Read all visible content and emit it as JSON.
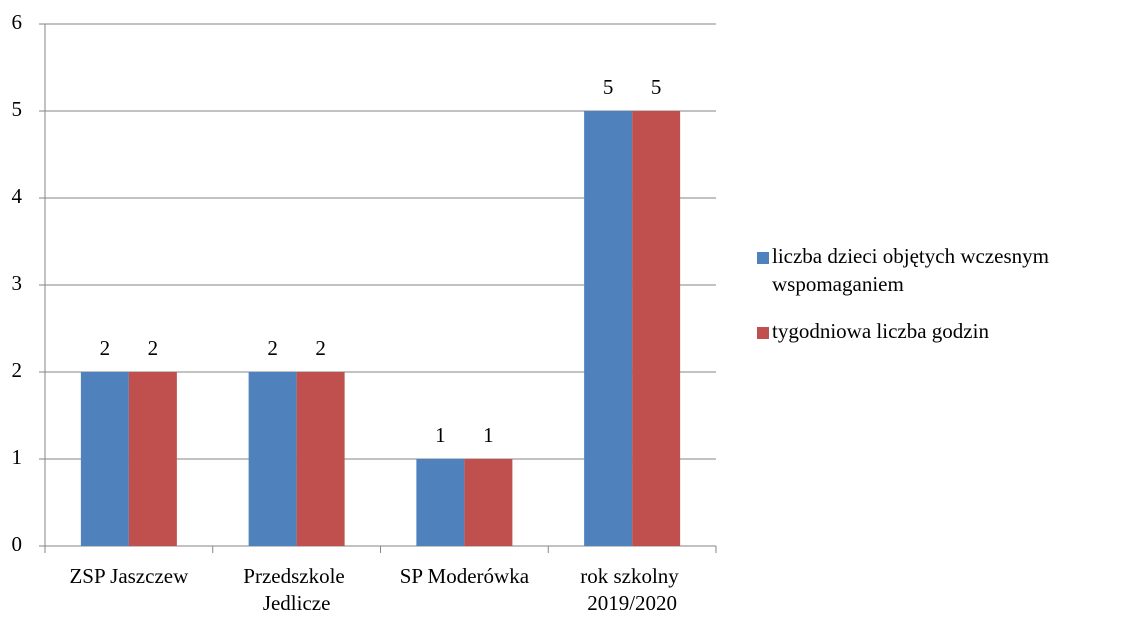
{
  "chart_data": {
    "type": "bar",
    "categories": [
      "ZSP Jaszczew",
      "Przedszkole Jedlicze",
      "SP Moderówka",
      "rok szkolny 2019/2020"
    ],
    "series": [
      {
        "name": "liczba dzieci objętych wczesnym wspomaganiem",
        "color": "#4f81bd",
        "values": [
          2,
          2,
          1,
          5
        ]
      },
      {
        "name": "tygodniowa liczba godzin",
        "color": "#c0504d",
        "values": [
          2,
          2,
          1,
          5
        ]
      }
    ],
    "ylim": [
      0,
      6
    ],
    "yticks": [
      0,
      1,
      2,
      3,
      4,
      5,
      6
    ],
    "grid": true,
    "legend": "right"
  }
}
